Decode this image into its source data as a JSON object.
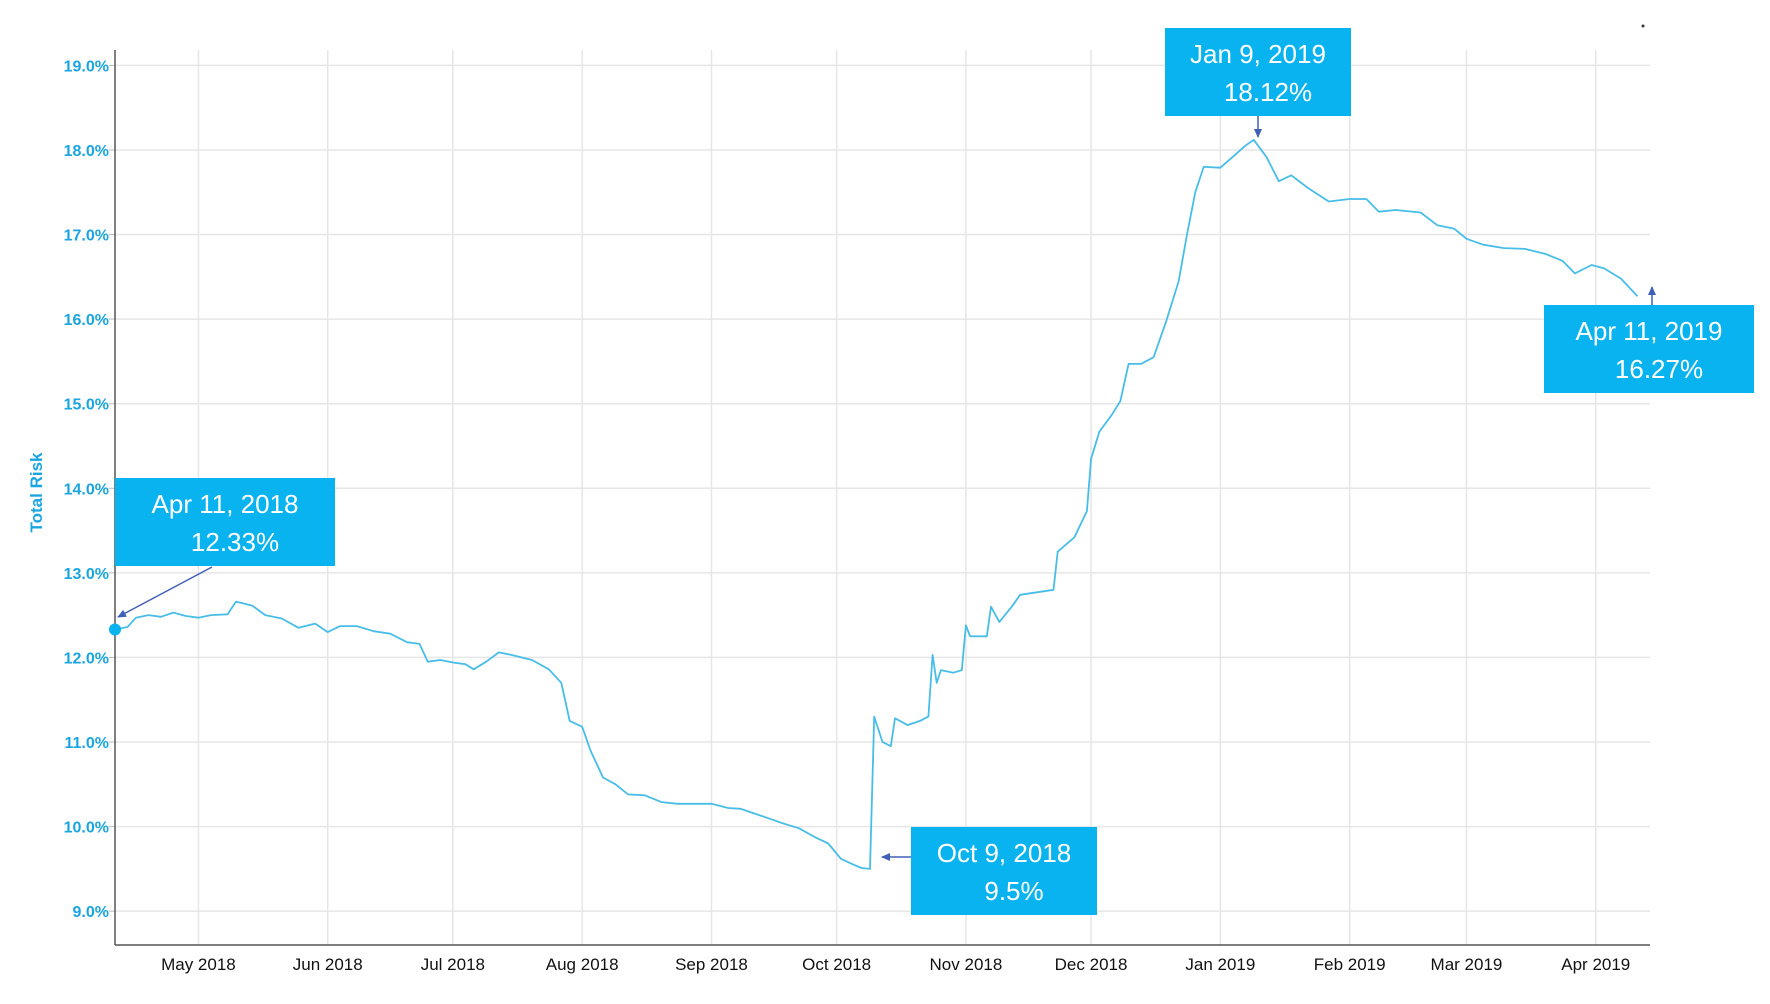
{
  "chart_data": {
    "type": "line",
    "title": "",
    "xlabel": "",
    "ylabel": "Total Risk",
    "ylim": [
      8.6,
      19.3
    ],
    "xlim": [
      "2018-04-11",
      "2019-04-14"
    ],
    "yticks": [
      {
        "value": 9.0,
        "label": "9.0%"
      },
      {
        "value": 10.0,
        "label": "10.0%"
      },
      {
        "value": 11.0,
        "label": "11.0%"
      },
      {
        "value": 12.0,
        "label": "12.0%"
      },
      {
        "value": 13.0,
        "label": "13.0%"
      },
      {
        "value": 14.0,
        "label": "14.0%"
      },
      {
        "value": 15.0,
        "label": "15.0%"
      },
      {
        "value": 16.0,
        "label": "16.0%"
      },
      {
        "value": 17.0,
        "label": "17.0%"
      },
      {
        "value": 18.0,
        "label": "18.0%"
      },
      {
        "value": 19.0,
        "label": "19.0%"
      }
    ],
    "xticks": [
      {
        "date": "2018-05-01",
        "label": "May 2018"
      },
      {
        "date": "2018-06-01",
        "label": "Jun 2018"
      },
      {
        "date": "2018-07-01",
        "label": "Jul 2018"
      },
      {
        "date": "2018-08-01",
        "label": "Aug 2018"
      },
      {
        "date": "2018-09-01",
        "label": "Sep 2018"
      },
      {
        "date": "2018-10-01",
        "label": "Oct 2018"
      },
      {
        "date": "2018-11-01",
        "label": "Nov 2018"
      },
      {
        "date": "2018-12-01",
        "label": "Dec 2018"
      },
      {
        "date": "2019-01-01",
        "label": "Jan 2019"
      },
      {
        "date": "2019-02-01",
        "label": "Feb 2019"
      },
      {
        "date": "2019-03-01",
        "label": "Mar 2019"
      },
      {
        "date": "2019-04-01",
        "label": "Apr 2019"
      }
    ],
    "grid": true,
    "colors": {
      "line": "#48bde8",
      "axis_text": "#1ba5e0",
      "callout_bg": "#09b3ef",
      "callout_text": "#ffffff",
      "arrow": "#4060b8",
      "grid": "#e6e6e6"
    },
    "series": [
      {
        "values": [
          [
            "2018-04-11",
            12.33
          ],
          [
            "2018-04-14",
            12.36
          ],
          [
            "2018-04-16",
            12.47
          ],
          [
            "2018-04-19",
            12.5
          ],
          [
            "2018-04-22",
            12.48
          ],
          [
            "2018-04-25",
            12.53
          ],
          [
            "2018-04-28",
            12.49
          ],
          [
            "2018-05-01",
            12.47
          ],
          [
            "2018-05-04",
            12.5
          ],
          [
            "2018-05-08",
            12.51
          ],
          [
            "2018-05-10",
            12.66
          ],
          [
            "2018-05-14",
            12.61
          ],
          [
            "2018-05-17",
            12.5
          ],
          [
            "2018-05-21",
            12.46
          ],
          [
            "2018-05-25",
            12.35
          ],
          [
            "2018-05-29",
            12.4
          ],
          [
            "2018-06-01",
            12.3
          ],
          [
            "2018-06-04",
            12.37
          ],
          [
            "2018-06-08",
            12.37
          ],
          [
            "2018-06-12",
            12.31
          ],
          [
            "2018-06-16",
            12.28
          ],
          [
            "2018-06-20",
            12.18
          ],
          [
            "2018-06-23",
            12.16
          ],
          [
            "2018-06-25",
            11.95
          ],
          [
            "2018-06-28",
            11.97
          ],
          [
            "2018-07-01",
            11.94
          ],
          [
            "2018-07-04",
            11.92
          ],
          [
            "2018-07-06",
            11.86
          ],
          [
            "2018-07-09",
            11.95
          ],
          [
            "2018-07-12",
            12.06
          ],
          [
            "2018-07-15",
            12.03
          ],
          [
            "2018-07-20",
            11.97
          ],
          [
            "2018-07-24",
            11.86
          ],
          [
            "2018-07-27",
            11.7
          ],
          [
            "2018-07-29",
            11.25
          ],
          [
            "2018-08-01",
            11.18
          ],
          [
            "2018-08-03",
            10.9
          ],
          [
            "2018-08-06",
            10.58
          ],
          [
            "2018-08-09",
            10.5
          ],
          [
            "2018-08-12",
            10.38
          ],
          [
            "2018-08-16",
            10.37
          ],
          [
            "2018-08-20",
            10.29
          ],
          [
            "2018-08-24",
            10.27
          ],
          [
            "2018-08-28",
            10.27
          ],
          [
            "2018-09-01",
            10.27
          ],
          [
            "2018-09-05",
            10.22
          ],
          [
            "2018-09-08",
            10.21
          ],
          [
            "2018-09-11",
            10.16
          ],
          [
            "2018-09-14",
            10.11
          ],
          [
            "2018-09-18",
            10.04
          ],
          [
            "2018-09-22",
            9.98
          ],
          [
            "2018-09-26",
            9.87
          ],
          [
            "2018-09-29",
            9.8
          ],
          [
            "2018-10-02",
            9.62
          ],
          [
            "2018-10-05",
            9.55
          ],
          [
            "2018-10-07",
            9.51
          ],
          [
            "2018-10-09",
            9.5
          ],
          [
            "2018-10-10",
            11.3
          ],
          [
            "2018-10-12",
            11.0
          ],
          [
            "2018-10-14",
            10.95
          ],
          [
            "2018-10-15",
            11.28
          ],
          [
            "2018-10-18",
            11.2
          ],
          [
            "2018-10-21",
            11.25
          ],
          [
            "2018-10-23",
            11.3
          ],
          [
            "2018-10-24",
            12.03
          ],
          [
            "2018-10-25",
            11.7
          ],
          [
            "2018-10-26",
            11.85
          ],
          [
            "2018-10-29",
            11.82
          ],
          [
            "2018-10-31",
            11.85
          ],
          [
            "2018-11-01",
            12.38
          ],
          [
            "2018-11-02",
            12.25
          ],
          [
            "2018-11-06",
            12.25
          ],
          [
            "2018-11-07",
            12.6
          ],
          [
            "2018-11-09",
            12.42
          ],
          [
            "2018-11-12",
            12.6
          ],
          [
            "2018-11-14",
            12.74
          ],
          [
            "2018-11-18",
            12.77
          ],
          [
            "2018-11-22",
            12.8
          ],
          [
            "2018-11-23",
            13.25
          ],
          [
            "2018-11-27",
            13.42
          ],
          [
            "2018-11-30",
            13.73
          ],
          [
            "2018-12-01",
            14.35
          ],
          [
            "2018-12-03",
            14.67
          ],
          [
            "2018-12-06",
            14.87
          ],
          [
            "2018-12-08",
            15.03
          ],
          [
            "2018-12-10",
            15.47
          ],
          [
            "2018-12-13",
            15.47
          ],
          [
            "2018-12-16",
            15.55
          ],
          [
            "2018-12-19",
            15.97
          ],
          [
            "2018-12-22",
            16.45
          ],
          [
            "2018-12-24",
            17.0
          ],
          [
            "2018-12-26",
            17.5
          ],
          [
            "2018-12-28",
            17.8
          ],
          [
            "2019-01-01",
            17.79
          ],
          [
            "2019-01-04",
            17.92
          ],
          [
            "2019-01-07",
            18.05
          ],
          [
            "2019-01-09",
            18.12
          ],
          [
            "2019-01-12",
            17.92
          ],
          [
            "2019-01-15",
            17.63
          ],
          [
            "2019-01-18",
            17.7
          ],
          [
            "2019-01-22",
            17.55
          ],
          [
            "2019-01-27",
            17.39
          ],
          [
            "2019-02-01",
            17.42
          ],
          [
            "2019-02-05",
            17.42
          ],
          [
            "2019-02-08",
            17.27
          ],
          [
            "2019-02-12",
            17.29
          ],
          [
            "2019-02-18",
            17.26
          ],
          [
            "2019-02-22",
            17.11
          ],
          [
            "2019-02-26",
            17.07
          ],
          [
            "2019-03-01",
            16.95
          ],
          [
            "2019-03-05",
            16.88
          ],
          [
            "2019-03-10",
            16.84
          ],
          [
            "2019-03-15",
            16.83
          ],
          [
            "2019-03-20",
            16.77
          ],
          [
            "2019-03-24",
            16.69
          ],
          [
            "2019-03-27",
            16.54
          ],
          [
            "2019-03-31",
            16.64
          ],
          [
            "2019-04-03",
            16.6
          ],
          [
            "2019-04-07",
            16.48
          ],
          [
            "2019-04-11",
            16.27
          ]
        ]
      }
    ],
    "annotations": [
      {
        "date": "2018-04-11",
        "value": 12.33,
        "line1": "Apr 11, 2018",
        "line2": "12.33%"
      },
      {
        "date": "2018-10-09",
        "value": 9.5,
        "line1": "Oct 9, 2018",
        "line2": "9.5%"
      },
      {
        "date": "2019-01-09",
        "value": 18.12,
        "line1": "Jan 9, 2019",
        "line2": "18.12%"
      },
      {
        "date": "2019-04-11",
        "value": 16.27,
        "line1": "Apr 11, 2019",
        "line2": "16.27%"
      }
    ]
  }
}
